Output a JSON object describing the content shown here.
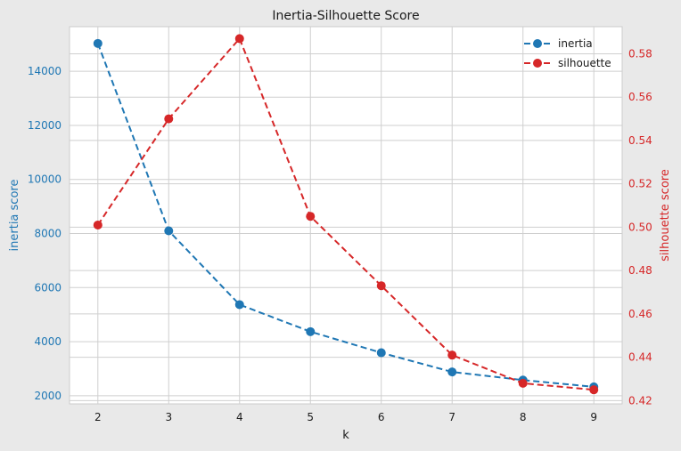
{
  "chart_data": {
    "type": "line",
    "title": "Inertia-Silhouette Score",
    "xlabel": "k",
    "x": [
      2,
      3,
      4,
      5,
      6,
      7,
      8,
      9
    ],
    "xlim": [
      1.6,
      9.4
    ],
    "grid": true,
    "legend_position": "top-right",
    "series": [
      {
        "name": "inertia",
        "axis": "left",
        "color": "#1f77b4",
        "values": [
          15030,
          8100,
          5370,
          4370,
          3590,
          2880,
          2580,
          2330
        ]
      },
      {
        "name": "silhouette",
        "axis": "right",
        "color": "#d62728",
        "values": [
          0.501,
          0.55,
          0.587,
          0.505,
          0.473,
          0.441,
          0.428,
          0.425
        ]
      }
    ],
    "y_left": {
      "label": "inertia score",
      "ylim": [
        1700,
        15650
      ],
      "ticks": [
        2000,
        4000,
        6000,
        8000,
        10000,
        12000,
        14000
      ],
      "color": "#1f77b4"
    },
    "y_right": {
      "label": "silhouette score",
      "ylim": [
        0.4185,
        0.5925
      ],
      "ticks": [
        0.42,
        0.44,
        0.46,
        0.48,
        0.5,
        0.52,
        0.54,
        0.56,
        0.58
      ],
      "color": "#d62728"
    }
  }
}
